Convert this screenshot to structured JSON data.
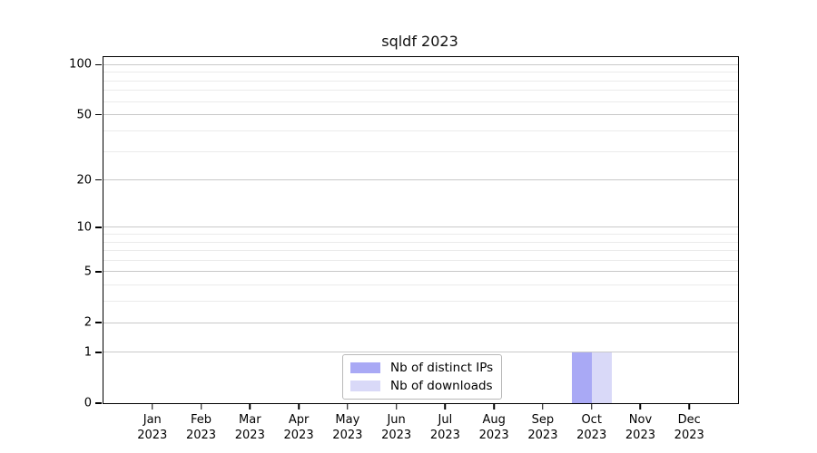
{
  "chart_data": {
    "type": "bar",
    "title": "sqldf 2023",
    "categories": [
      "Jan",
      "Feb",
      "Mar",
      "Apr",
      "May",
      "Jun",
      "Jul",
      "Aug",
      "Sep",
      "Oct",
      "Nov",
      "Dec"
    ],
    "category_sublabel": "2023",
    "series": [
      {
        "name": "Nb of distinct IPs",
        "color": "#a9a9f5",
        "values": [
          0,
          0,
          0,
          0,
          0,
          0,
          0,
          0,
          0,
          1,
          0,
          0
        ]
      },
      {
        "name": "Nb of downloads",
        "color": "#d9d9f8",
        "values": [
          0,
          0,
          0,
          0,
          0,
          0,
          0,
          0,
          0,
          1,
          0,
          0
        ]
      }
    ],
    "xlabel": "",
    "ylabel": "",
    "yscale": "log1p",
    "ylim": [
      0,
      111
    ],
    "yticks": [
      0,
      1,
      2,
      5,
      10,
      20,
      50,
      100
    ],
    "yticks_minor": [
      3,
      4,
      6,
      7,
      8,
      9,
      30,
      40,
      60,
      70,
      80,
      90
    ],
    "grid": "horizontal",
    "legend_position": "lower-center"
  },
  "colors": {
    "major_grid": "#c9c9c9",
    "minor_grid": "#ebebeb",
    "spine": "#000000",
    "bar_distinct_ips": "#a9a9f5",
    "bar_downloads": "#d9d9f8"
  }
}
